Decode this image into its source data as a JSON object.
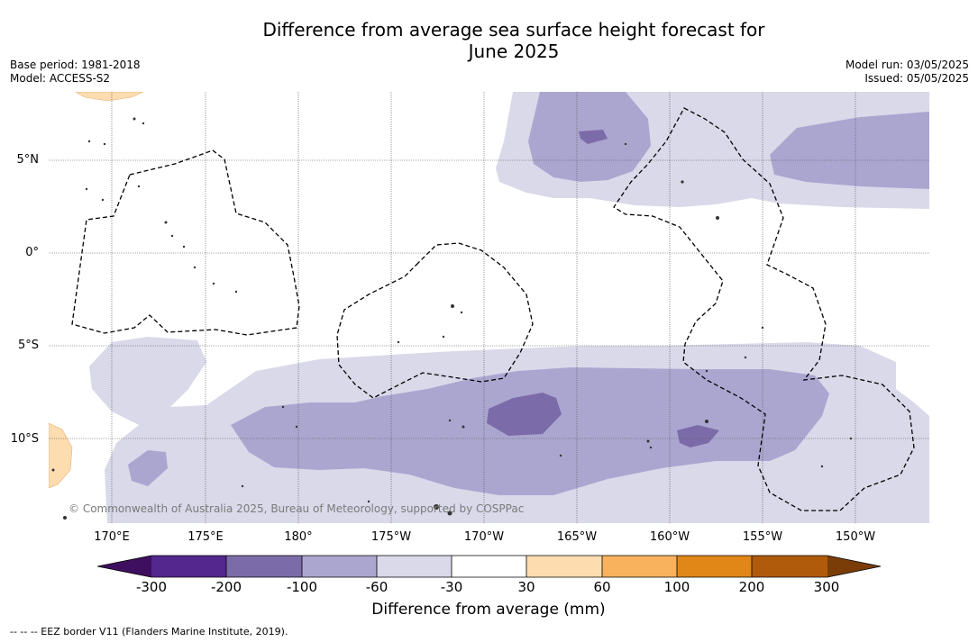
{
  "title": {
    "line1": "Difference from average sea surface height forecast for",
    "line2": "June 2025"
  },
  "meta_left": {
    "base_period": "Base period: 1981-2018",
    "model": "Model: ACCESS-S2"
  },
  "meta_right": {
    "model_run": "Model run: 03/05/2025",
    "issued": "Issued: 05/05/2025"
  },
  "lat_labels": [
    "5°N",
    "0°",
    "5°S",
    "10°S"
  ],
  "lon_labels": [
    "170°E",
    "175°E",
    "180°",
    "175°W",
    "170°W",
    "165°W",
    "160°W",
    "155°W",
    "150°W"
  ],
  "copyright": "© Commonwealth of Australia 2025, Bureau of Meteorology, supported by COSPPac",
  "colorbar": {
    "ticks": [
      "-300",
      "-200",
      "-100",
      "-60",
      "-30",
      "30",
      "60",
      "100",
      "200",
      "300"
    ],
    "colors": [
      "#3f0f5f",
      "#54278f",
      "#7c6ba9",
      "#aba6d0",
      "#d9d9ea",
      "#ffffff",
      "#fddcb0",
      "#f8b25d",
      "#e18718",
      "#b05a0c",
      "#7a3d08"
    ],
    "title": "Difference from average (mm)"
  },
  "footnote": "--  --  -- EEZ border V11 (Flanders Marine Institute, 2019)."
}
